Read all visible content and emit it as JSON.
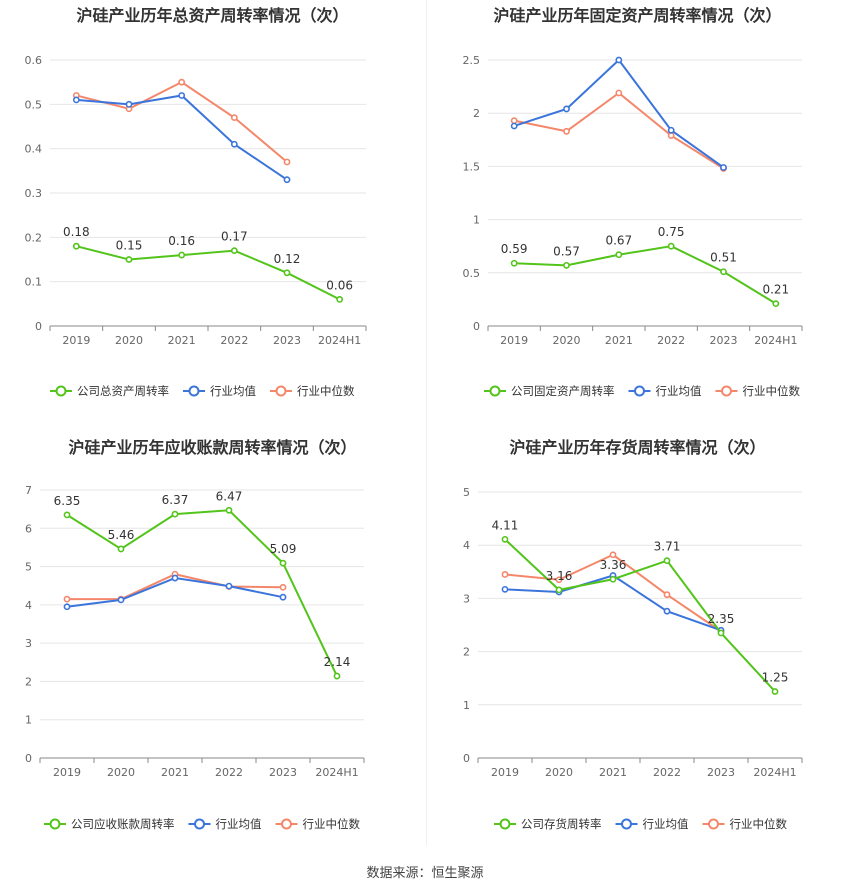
{
  "footer": {
    "label": "数据来源：",
    "source": "恒生聚源"
  },
  "chart_data": [
    {
      "type": "line",
      "title": "沪硅产业历年总资产周转率情况（次）",
      "categories": [
        "2019",
        "2020",
        "2021",
        "2022",
        "2023",
        "2024H1"
      ],
      "ylim": [
        0,
        0.6
      ],
      "yticks": [
        0,
        0.1,
        0.2,
        0.3,
        0.4,
        0.5,
        0.6
      ],
      "ytick_labels": [
        "0",
        "0.1",
        "0.2",
        "0.3",
        "0.4",
        "0.5",
        "0.6"
      ],
      "grid": true,
      "legend_position": "bottom",
      "series": [
        {
          "name": "公司总资产周转率",
          "color": "#52c41a",
          "values": [
            0.18,
            0.15,
            0.16,
            0.17,
            0.12,
            0.06
          ],
          "labels": true
        },
        {
          "name": "行业均值",
          "color": "#3b75db",
          "values": [
            0.51,
            0.5,
            0.52,
            0.41,
            0.33,
            null
          ],
          "labels": false
        },
        {
          "name": "行业中位数",
          "color": "#f4876a",
          "values": [
            0.52,
            0.49,
            0.55,
            0.47,
            0.37,
            null
          ],
          "labels": false
        }
      ]
    },
    {
      "type": "line",
      "title": "沪硅产业历年固定资产周转率情况（次）",
      "categories": [
        "2019",
        "2020",
        "2021",
        "2022",
        "2023",
        "2024H1"
      ],
      "ylim": [
        0,
        2.5
      ],
      "yticks": [
        0,
        0.5,
        1,
        1.5,
        2,
        2.5
      ],
      "ytick_labels": [
        "0",
        "0.5",
        "1",
        "1.5",
        "2",
        "2.5"
      ],
      "grid": true,
      "legend_position": "bottom",
      "series": [
        {
          "name": "公司固定资产周转率",
          "color": "#52c41a",
          "values": [
            0.59,
            0.57,
            0.67,
            0.75,
            0.51,
            0.21
          ],
          "labels": true
        },
        {
          "name": "行业均值",
          "color": "#3b75db",
          "values": [
            1.88,
            2.04,
            2.5,
            1.84,
            1.49,
            null
          ],
          "labels": false
        },
        {
          "name": "行业中位数",
          "color": "#f4876a",
          "values": [
            1.93,
            1.83,
            2.19,
            1.79,
            1.48,
            null
          ],
          "labels": false
        }
      ]
    },
    {
      "type": "line",
      "title": "沪硅产业历年应收账款周转率情况（次）",
      "categories": [
        "2019",
        "2020",
        "2021",
        "2022",
        "2023",
        "2024H1"
      ],
      "ylim": [
        0,
        7
      ],
      "yticks": [
        0,
        1,
        2,
        3,
        4,
        5,
        6,
        7
      ],
      "ytick_labels": [
        "0",
        "1",
        "2",
        "3",
        "4",
        "5",
        "6",
        "7"
      ],
      "grid": true,
      "legend_position": "bottom",
      "series": [
        {
          "name": "公司应收账款周转率",
          "color": "#52c41a",
          "values": [
            6.35,
            5.46,
            6.37,
            6.47,
            5.09,
            2.14
          ],
          "labels": true
        },
        {
          "name": "行业均值",
          "color": "#3b75db",
          "values": [
            3.95,
            4.13,
            4.7,
            4.49,
            4.2,
            null
          ],
          "labels": false
        },
        {
          "name": "行业中位数",
          "color": "#f4876a",
          "values": [
            4.15,
            4.15,
            4.8,
            4.48,
            4.46,
            null
          ],
          "labels": false
        }
      ]
    },
    {
      "type": "line",
      "title": "沪硅产业历年存货周转率情况（次）",
      "categories": [
        "2019",
        "2020",
        "2021",
        "2022",
        "2023",
        "2024H1"
      ],
      "ylim": [
        0,
        5
      ],
      "yticks": [
        0,
        1,
        2,
        3,
        4,
        5
      ],
      "ytick_labels": [
        "0",
        "1",
        "2",
        "3",
        "4",
        "5"
      ],
      "grid": true,
      "legend_position": "bottom",
      "series": [
        {
          "name": "公司存货周转率",
          "color": "#52c41a",
          "values": [
            4.11,
            3.16,
            3.36,
            3.71,
            2.35,
            1.25
          ],
          "labels": true
        },
        {
          "name": "行业均值",
          "color": "#3b75db",
          "values": [
            3.17,
            3.12,
            3.43,
            2.76,
            2.4,
            null
          ],
          "labels": false
        },
        {
          "name": "行业中位数",
          "color": "#f4876a",
          "values": [
            3.45,
            3.35,
            3.82,
            3.07,
            2.38,
            null
          ],
          "labels": false
        }
      ]
    }
  ]
}
